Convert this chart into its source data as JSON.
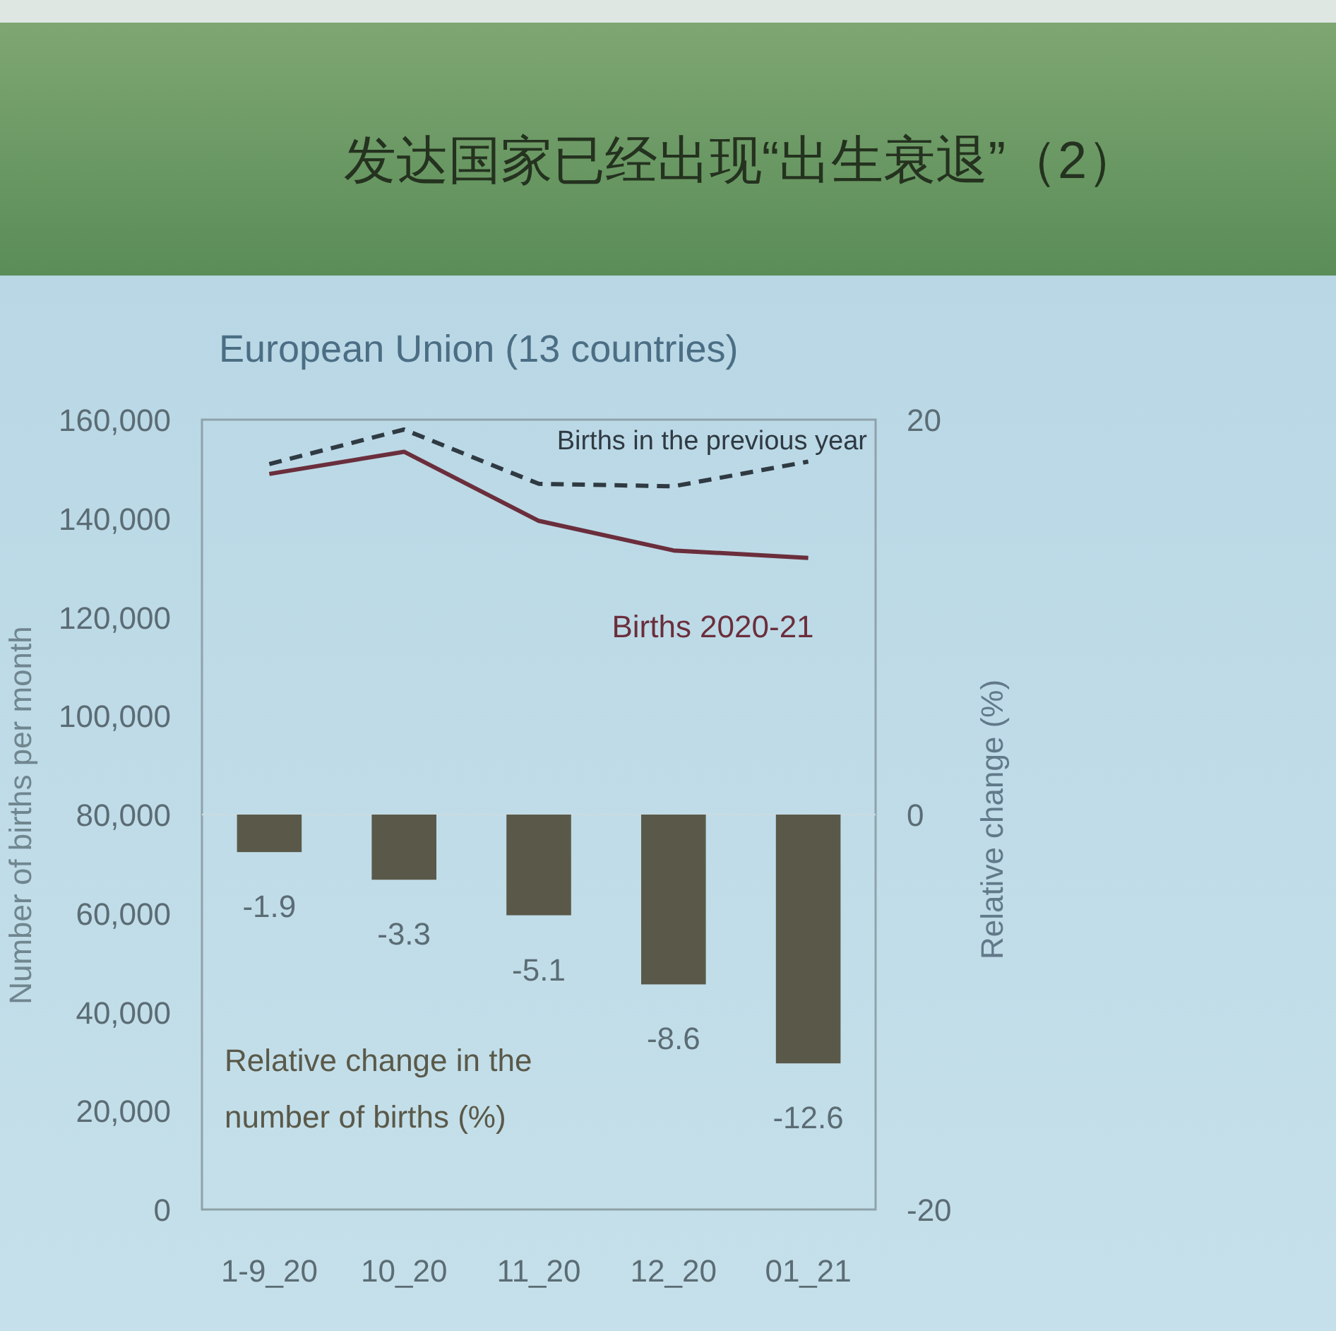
{
  "chart_data": {
    "type": "bar",
    "title": "发达国家已经出现“出生衰退”（2）",
    "subtitle": "European Union (13 countries)",
    "ylabel": "Number of births per month",
    "y2label": "Relative change (%)",
    "categories": [
      "1-9_20",
      "10_20",
      "11_20",
      "12_20",
      "01_21"
    ],
    "series": [
      {
        "name": "Births in the previous year",
        "type": "line",
        "color": "#2f3a42",
        "line_style": "dashed",
        "values": [
          151000,
          158000,
          147000,
          146500,
          151500
        ]
      },
      {
        "name": "Births 2020-21",
        "type": "line",
        "color": "#6b2e3c",
        "line_style": "solid",
        "values": [
          149000,
          153500,
          139500,
          133500,
          132000
        ]
      },
      {
        "name": "Relative change in the number of births (%)",
        "axis": "y2",
        "color": "#5a5949",
        "values": [
          -1.9,
          -3.3,
          -5.1,
          -8.6,
          -12.6
        ],
        "value_labels": [
          "-1.9",
          "-3.3",
          "-5.1",
          "-8.6",
          "-12.6"
        ]
      }
    ],
    "ylim": [
      0,
      160000
    ],
    "yticks": [
      {
        "value": 0,
        "label": "0"
      },
      {
        "value": 20000,
        "label": "20,000"
      },
      {
        "value": 40000,
        "label": "40,000"
      },
      {
        "value": 60000,
        "label": "60,000"
      },
      {
        "value": 80000,
        "label": "80,000"
      },
      {
        "value": 100000,
        "label": "100,000"
      },
      {
        "value": 120000,
        "label": "120,000"
      },
      {
        "value": 140000,
        "label": "140,000"
      },
      {
        "value": 160000,
        "label": "160,000"
      }
    ],
    "y2lim": [
      -20,
      20
    ],
    "y2ticks": [
      -20,
      0,
      20
    ]
  }
}
